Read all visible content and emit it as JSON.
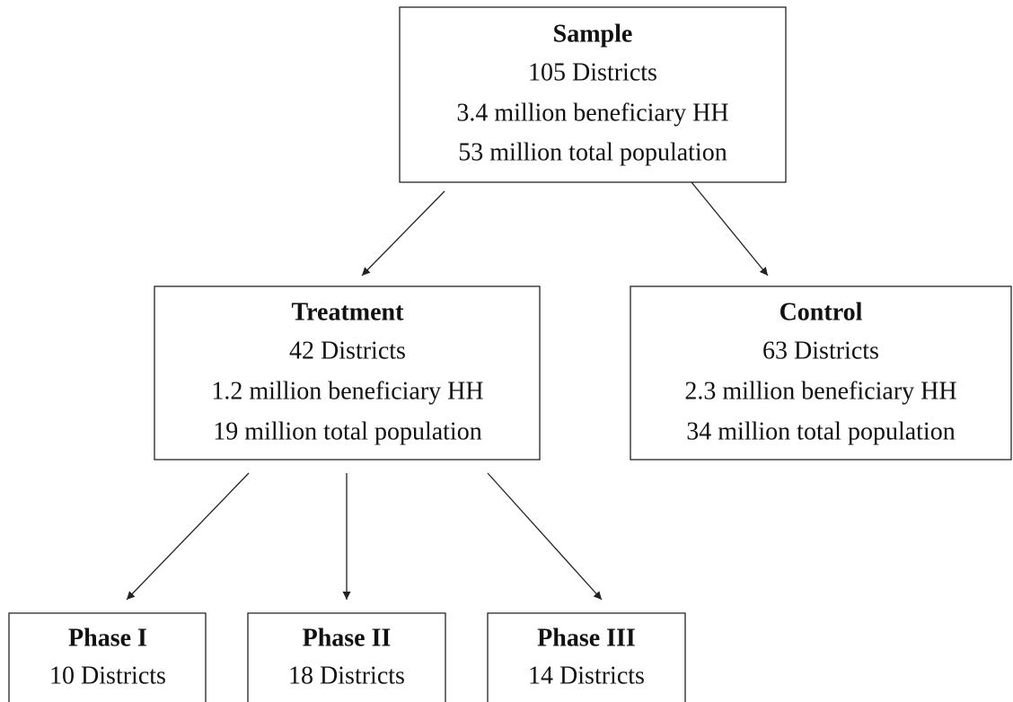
{
  "nodes": [
    {
      "title": "Sample",
      "lines": [
        "105 Districts",
        "3.4 million beneficiary HH",
        "53 million total population"
      ]
    },
    {
      "title": "Treatment",
      "lines": [
        "42 Districts",
        "1.2 million beneficiary HH",
        "19 million total population"
      ]
    },
    {
      "title": "Control",
      "lines": [
        "63 Districts",
        "2.3 million beneficiary HH",
        "34 million total population"
      ]
    },
    {
      "title": "Phase I",
      "lines": [
        "10 Districts"
      ]
    },
    {
      "title": "Phase II",
      "lines": [
        "18 Districts"
      ]
    },
    {
      "title": "Phase III",
      "lines": [
        "14 Districts"
      ]
    }
  ]
}
